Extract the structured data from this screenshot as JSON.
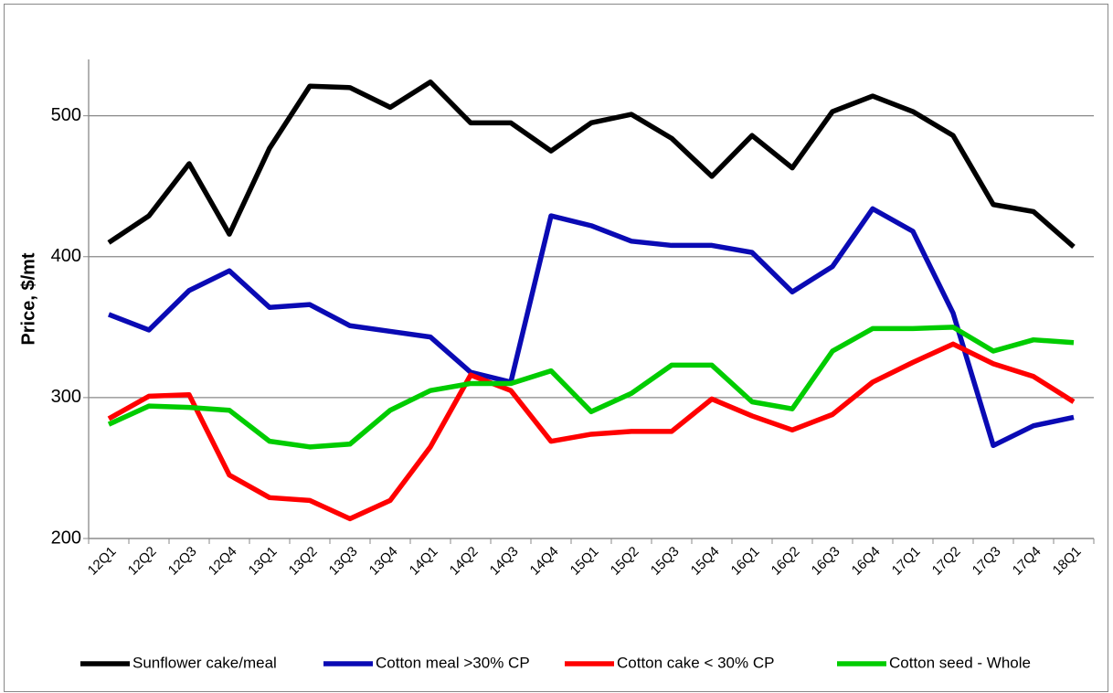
{
  "chart_data": {
    "type": "line",
    "y_label": "Price, $/mt",
    "categories": [
      "12Q1",
      "12Q2",
      "12Q3",
      "12Q4",
      "13Q1",
      "13Q2",
      "13Q3",
      "13Q4",
      "14Q1",
      "14Q2",
      "14Q3",
      "14Q4",
      "15Q1",
      "15Q2",
      "15Q3",
      "15Q4",
      "16Q1",
      "16Q2",
      "16Q3",
      "16Q4",
      "17Q1",
      "17Q2",
      "17Q3",
      "17Q4",
      "18Q1"
    ],
    "series": [
      {
        "name": "Sunflower cake/meal",
        "color": "#000000",
        "values": [
          410,
          429,
          466,
          416,
          477,
          521,
          520,
          506,
          524,
          495,
          495,
          475,
          495,
          501,
          484,
          457,
          486,
          463,
          503,
          514,
          503,
          486,
          437,
          432,
          407
        ]
      },
      {
        "name": "Cotton meal >30% CP",
        "color": "#0a0ab4",
        "values": [
          359,
          348,
          376,
          390,
          364,
          366,
          351,
          347,
          343,
          318,
          311,
          429,
          422,
          411,
          408,
          408,
          403,
          375,
          393,
          434,
          418,
          360,
          266,
          280,
          286
        ]
      },
      {
        "name": "Cotton cake < 30% CP",
        "color": "#ff0000",
        "values": [
          285,
          301,
          302,
          245,
          229,
          227,
          214,
          227,
          265,
          316,
          305,
          269,
          274,
          276,
          276,
          299,
          287,
          277,
          288,
          311,
          325,
          338,
          324,
          315,
          297
        ]
      },
      {
        "name": "Cotton seed - Whole",
        "color": "#00cc00",
        "values": [
          281,
          294,
          293,
          291,
          269,
          265,
          267,
          291,
          305,
          310,
          310,
          319,
          290,
          303,
          323,
          323,
          297,
          292,
          333,
          349,
          349,
          350,
          333,
          341,
          339
        ]
      }
    ],
    "ylim": [
      200,
      540
    ],
    "yticks": [
      200,
      300,
      400,
      500
    ],
    "grid": true,
    "legend": "bottom"
  }
}
